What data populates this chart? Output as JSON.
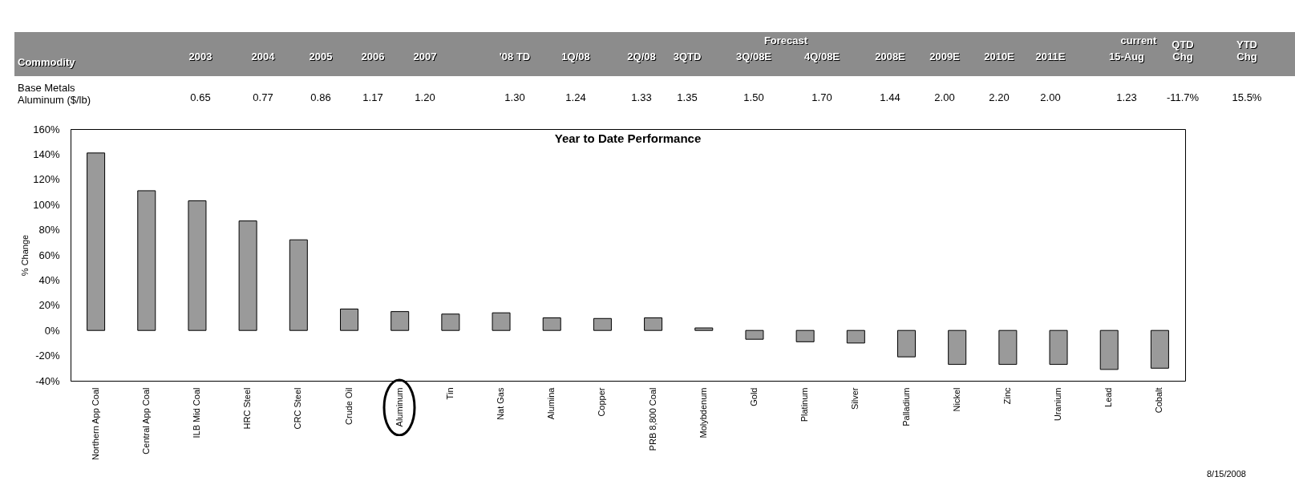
{
  "chart_data": {
    "type": "bar",
    "title": "Year to Date Performance",
    "ylabel": "% Change",
    "categories": [
      "Northern App Coal",
      "Central App Coal",
      "ILB Mid Coal",
      "HRC Steel",
      "CRC Steel",
      "Crude Oil",
      "Aluminum",
      "Tin",
      "Nat Gas",
      "Alumina",
      "Copper",
      "PRB 8,800 Coal",
      "Molybdenum",
      "Gold",
      "Platinum",
      "Silver",
      "Palladium",
      "Nickel",
      "Zinc",
      "Uranium",
      "Lead",
      "Cobalt"
    ],
    "values": [
      141,
      111,
      103,
      87,
      72,
      17,
      15,
      13,
      14,
      10,
      9.5,
      10,
      2,
      -7,
      -9,
      -10,
      -21,
      -27,
      -27,
      -27,
      -31,
      -30
    ],
    "color": "#9a9a9a",
    "ylim": [
      -40,
      160
    ],
    "yticks": [
      {
        "value": -40,
        "label": "-40%"
      },
      {
        "value": -20,
        "label": "-20%"
      },
      {
        "value": 0,
        "label": "0%"
      },
      {
        "value": 20,
        "label": "20%"
      },
      {
        "value": 40,
        "label": "40%"
      },
      {
        "value": 60,
        "label": "60%"
      },
      {
        "value": 80,
        "label": "80%"
      },
      {
        "value": 100,
        "label": "100%"
      },
      {
        "value": 120,
        "label": "120%"
      },
      {
        "value": 140,
        "label": "140%"
      },
      {
        "value": 160,
        "label": "160%"
      }
    ],
    "annotations": [
      "Forecast",
      "current",
      "Commodity",
      "2003",
      "2004",
      "2005",
      "2006",
      "2007",
      "'08 TD",
      "1Q/08",
      "2Q/08",
      "3QTD",
      "3Q/08E",
      "4Q/08E",
      "2008E",
      "2009E",
      "2010E",
      "2011E",
      "15-Aug",
      "QTD Chg",
      "YTD Chg",
      "Base Metals",
      "Aluminum ($/lb)",
      "0.65",
      "0.77",
      "0.86",
      "1.17",
      "1.20",
      "1.30",
      "1.24",
      "1.33",
      "1.35",
      "1.50",
      "1.70",
      "1.44",
      "2.00",
      "2.20",
      "2.00",
      "1.23",
      "-11.7%",
      "15.5%",
      "8/15/2008"
    ]
  }
}
